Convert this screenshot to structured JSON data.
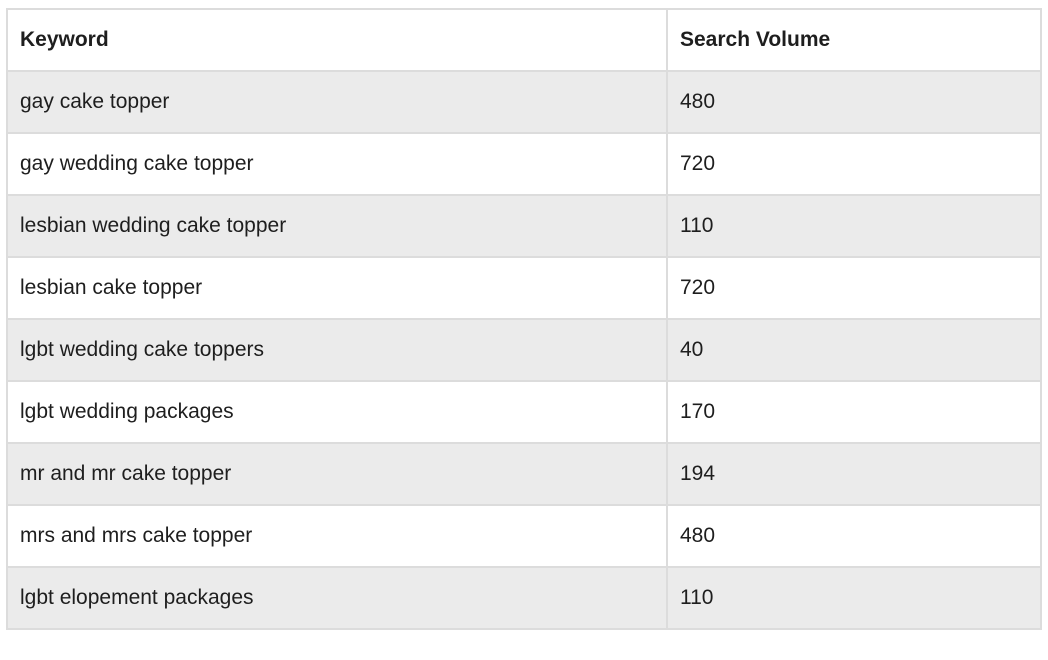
{
  "table": {
    "headers": [
      "Keyword",
      "Search Volume"
    ],
    "rows": [
      [
        "gay cake topper",
        "480"
      ],
      [
        "gay wedding cake topper",
        "720"
      ],
      [
        "lesbian wedding cake topper",
        "110"
      ],
      [
        "lesbian cake topper",
        "720"
      ],
      [
        "lgbt wedding cake toppers",
        "40"
      ],
      [
        "lgbt wedding packages",
        "170"
      ],
      [
        "mr and mr cake topper",
        "194"
      ],
      [
        "mrs and mrs cake topper",
        "480"
      ],
      [
        "lgbt elopement packages",
        "110"
      ]
    ]
  },
  "colors": {
    "stripe": "#ebebeb",
    "border": "#dcdcdc",
    "text": "#1e1e1e"
  }
}
